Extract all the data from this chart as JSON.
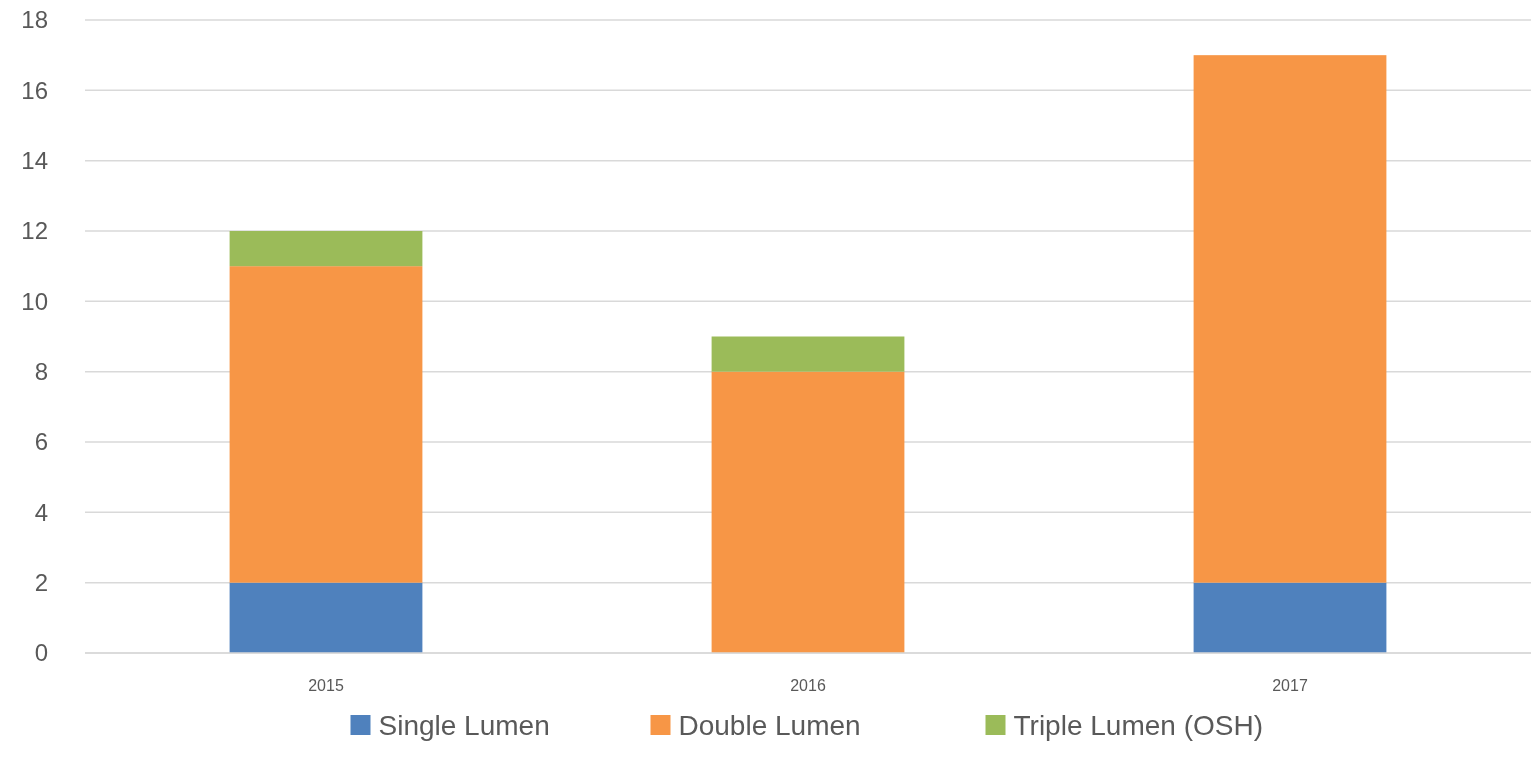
{
  "chart_data": {
    "type": "bar",
    "stacked": true,
    "categories": [
      "2015",
      "2016",
      "2017"
    ],
    "series": [
      {
        "name": "Single Lumen",
        "color": "#4f81bd",
        "values": [
          2,
          0,
          2
        ]
      },
      {
        "name": "Double Lumen",
        "color": "#f79646",
        "values": [
          9,
          8,
          15
        ]
      },
      {
        "name": "Triple Lumen (OSH)",
        "color": "#9bbb59",
        "values": [
          1,
          1,
          0
        ]
      }
    ],
    "ylim": [
      0,
      18
    ],
    "yticks": [
      0,
      2,
      4,
      6,
      8,
      10,
      12,
      14,
      16,
      18
    ],
    "grid": "y",
    "legend": "bottom"
  }
}
